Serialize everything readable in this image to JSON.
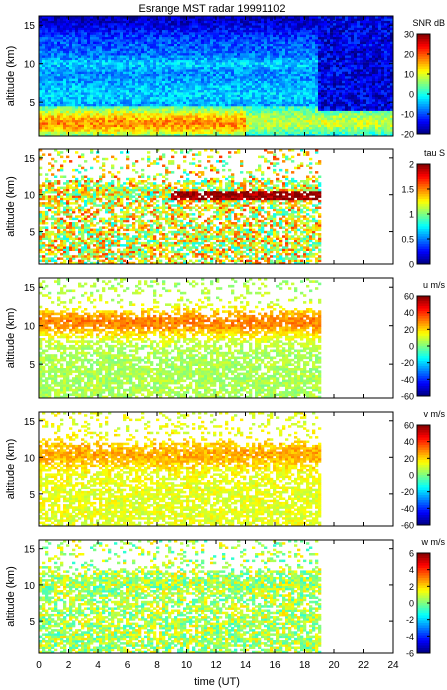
{
  "title": "Esrange MST radar 19991102",
  "x_axis": {
    "label": "time (UT)",
    "range": [
      0,
      24
    ],
    "ticks": [
      0,
      2,
      4,
      6,
      8,
      10,
      12,
      14,
      16,
      18,
      20,
      22,
      24
    ]
  },
  "chart_data": [
    {
      "type": "heatmap",
      "title": "Esrange MST radar 19991102",
      "xlabel": "",
      "ylabel": "altitude (km)",
      "xlim": [
        0,
        24
      ],
      "ylim": [
        0.6,
        16.2
      ],
      "yticks": [
        5,
        10,
        15
      ],
      "colorbar": {
        "label": "SNR dB",
        "range": [
          -20,
          30
        ],
        "ticks": [
          30,
          20,
          10,
          0,
          -10,
          -20
        ]
      },
      "data_extent_hours": 24,
      "features": {
        "tropopause_altitude_km": 10,
        "high_snr_layer_km": [
          1,
          3
        ],
        "high_snr_range_db": [
          20,
          30
        ],
        "background_snr_db": -20
      }
    },
    {
      "type": "heatmap",
      "xlabel": "",
      "ylabel": "altitude (km)",
      "xlim": [
        0,
        24
      ],
      "ylim": [
        0.6,
        16.2
      ],
      "yticks": [
        5,
        10,
        15
      ],
      "colorbar": {
        "label": "tau S",
        "range": [
          0,
          2
        ],
        "ticks": [
          2,
          1.5,
          1,
          0.5,
          0
        ]
      },
      "data_extent_hours": 19.2,
      "features": {
        "tropopause_altitude_km": 10,
        "typical_value_s": 1.2
      }
    },
    {
      "type": "heatmap",
      "xlabel": "",
      "ylabel": "altitude (km)",
      "xlim": [
        0,
        24
      ],
      "ylim": [
        0.6,
        16.2
      ],
      "yticks": [
        5,
        10,
        15
      ],
      "colorbar": {
        "label": "u m/s",
        "range": [
          -60,
          60
        ],
        "ticks": [
          60,
          40,
          20,
          0,
          -20,
          -40,
          -60
        ]
      },
      "data_extent_hours": 19.2,
      "features": {
        "jet_altitude_km": 10.5,
        "jet_speed_ms": 30,
        "lower_levels_ms": 5
      }
    },
    {
      "type": "heatmap",
      "xlabel": "",
      "ylabel": "altitude (km)",
      "xlim": [
        0,
        24
      ],
      "ylim": [
        0.6,
        16.2
      ],
      "yticks": [
        5,
        10,
        15
      ],
      "colorbar": {
        "label": "v m/s",
        "range": [
          -60,
          60
        ],
        "ticks": [
          60,
          40,
          20,
          0,
          -20,
          -40,
          -60
        ]
      },
      "data_extent_hours": 19.2,
      "features": {
        "jet_altitude_km": 10.5,
        "jet_speed_ms": 25,
        "lower_levels_ms": 12
      }
    },
    {
      "type": "heatmap",
      "xlabel": "time (UT)",
      "ylabel": "altitude (km)",
      "xlim": [
        0,
        24
      ],
      "ylim": [
        0.6,
        16.2
      ],
      "yticks": [
        5,
        10,
        15
      ],
      "colorbar": {
        "label": "w m/s",
        "range": [
          -6,
          6
        ],
        "ticks": [
          6,
          4,
          2,
          0,
          -2,
          -4,
          -6
        ]
      },
      "data_extent_hours": 19.2,
      "features": {
        "typical_value_ms": 0.5
      }
    }
  ]
}
